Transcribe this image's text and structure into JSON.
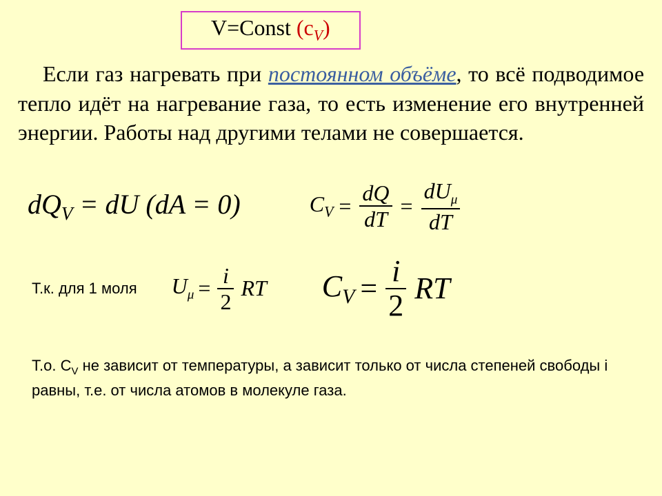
{
  "background_color": "#ffffcb",
  "border_color": "#d63cc9",
  "title": {
    "part1": "V=Const  ",
    "part2_red": "(c",
    "part2_sub": "V",
    "part2_close": ")",
    "red_color": "#cc0000"
  },
  "paragraph": {
    "lead": "Если газ нагревать при ",
    "underline": "постоянном объёме",
    "rest": ", то всё подводимое тепло идёт на нагревание газа, то есть изменение его внутренней энергии. Работы над другими телами не совершается.",
    "underline_color": "#3b5fa0"
  },
  "eq1": {
    "left_dQ": "dQ",
    "left_sub": "V",
    "left_eq": " = dU   (dA = 0)",
    "cv_C": "C",
    "cv_sub": "V",
    "equals": "=",
    "dQ": "dQ",
    "dT": "dT",
    "dU": "dU",
    "mu": "μ"
  },
  "eq2": {
    "label": "Т.к. для 1 моля",
    "U": "U",
    "mu": "μ",
    "equals": "=",
    "i": "i",
    "two": "2",
    "RT": "RT",
    "C": "C",
    "V": "V"
  },
  "conclusion": {
    "line1": "Т.о. С",
    "sub": "V",
    "rest": " не зависит от температуры, а зависит только от числа степеней свободы i равны, т.е. от числа атомов в молекуле газа."
  }
}
